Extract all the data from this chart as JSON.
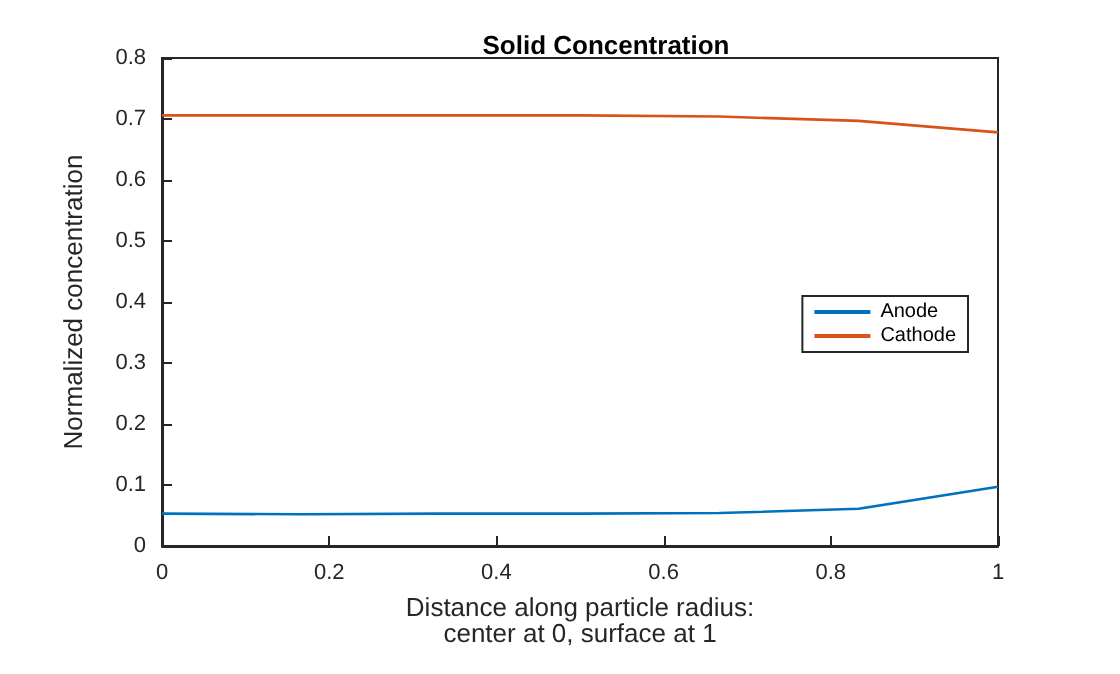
{
  "chart_data": {
    "type": "line",
    "title": "Solid Concentration",
    "xlabel": "Distance along particle radius:\ncenter at 0, surface at 1",
    "ylabel": "Normalized concentration",
    "x": [
      0,
      0.1667,
      0.3333,
      0.5,
      0.6667,
      0.8333,
      1
    ],
    "series": [
      {
        "name": "Anode",
        "color": "#0072bd",
        "values": [
          0.053,
          0.052,
          0.053,
          0.053,
          0.054,
          0.061,
          0.097
        ]
      },
      {
        "name": "Cathode",
        "color": "#d95319",
        "values": [
          0.706,
          0.706,
          0.706,
          0.706,
          0.704,
          0.697,
          0.678
        ]
      }
    ],
    "xlim": [
      0,
      1
    ],
    "xticks": [
      0,
      0.2,
      0.4,
      0.6,
      0.8,
      1
    ],
    "ylim": [
      0,
      0.8
    ],
    "yticks": [
      0,
      0.1,
      0.2,
      0.3,
      0.4,
      0.5,
      0.6,
      0.7,
      0.8
    ],
    "grid": false,
    "legend": "right",
    "marker": "none",
    "line_style": "solid"
  }
}
